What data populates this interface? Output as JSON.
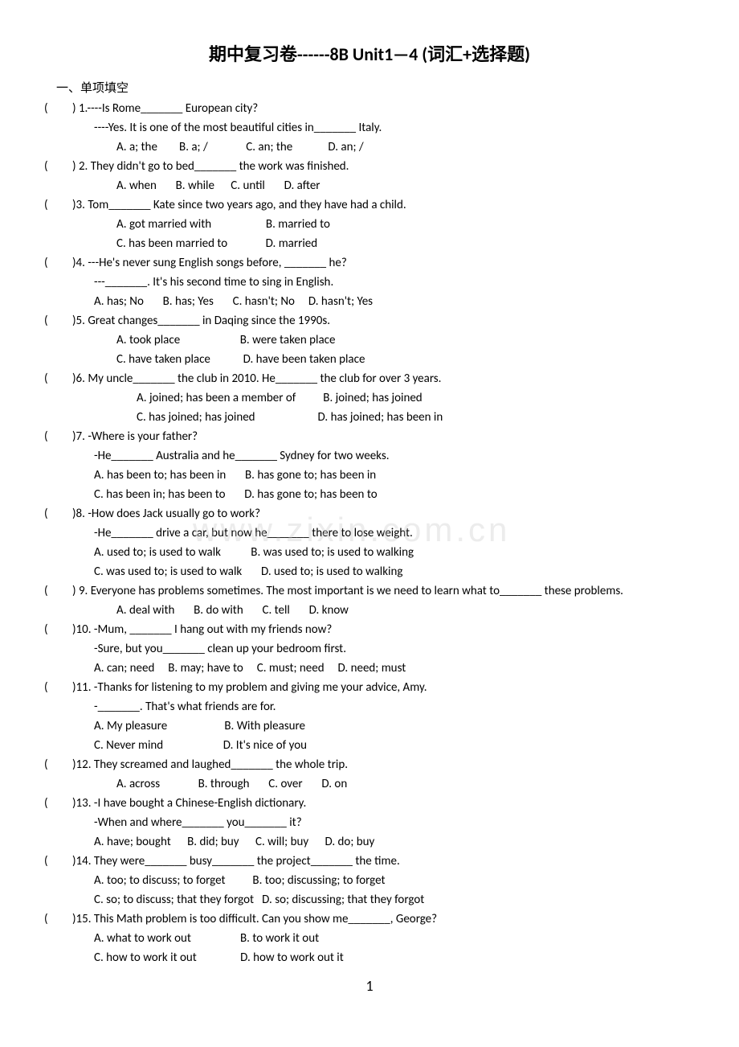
{
  "title": "期中复习卷------8B Unit1—4 (词汇+选择题)",
  "section_header": "一、单项填空",
  "watermark": "www.zixin.com.cn",
  "page_number": "1",
  "questions": [
    {
      "num": "1",
      "text": ") 1.----Is Rome_______ European city?",
      "lines": [
        "----Yes. It is one of the most beautiful cities in_______ Italy."
      ],
      "options": "A. a; the        B. a; /              C. an; the             D. an; /",
      "options_indent": true
    },
    {
      "num": "2",
      "text": ") 2. They didn't go to bed_______ the work was finished.",
      "lines": [],
      "options": "A. when       B. while      C. until       D. after",
      "options_indent": true
    },
    {
      "num": "3",
      "text": ")3. Tom_______ Kate since two years ago, and they have had a child.",
      "lines": [],
      "options_multi": [
        "A. got married with                    B. married to",
        "C. has been married to              D. married"
      ],
      "options_indent": true
    },
    {
      "num": "4",
      "text": ")4. ---He's never sung English songs before, _______ he?",
      "lines": [
        "---_______. It's his second time to sing in English."
      ],
      "options": "A. has; No       B. has; Yes       C. hasn't; No     D. hasn't; Yes"
    },
    {
      "num": "5",
      "text": ")5. Great changes_______ in Daqing since the 1990s.",
      "lines": [],
      "options_multi": [
        "A. took place                      B. were taken place",
        "C. have taken place            D. have been taken place"
      ],
      "options_indent": true
    },
    {
      "num": "6",
      "text": ")6. My uncle_______ the club in 2010. He_______ the club for over 3 years.",
      "lines": [],
      "options_multi": [
        "A. joined; has been a member of          B. joined; has joined",
        "C. has joined; has joined                       D. has joined; has been in"
      ],
      "options_indent": true,
      "extra_indent": true
    },
    {
      "num": "7",
      "text": ")7. -Where is your father?",
      "lines": [
        "-He_______ Australia and he_______ Sydney for two weeks."
      ],
      "options_multi": [
        "A. has been to; has been in       B. has gone to; has been in",
        "C. has been in; has been to       D. has gone to; has been to"
      ]
    },
    {
      "num": "8",
      "text": ")8. -How does Jack usually go to work?",
      "lines": [
        "-He_______ drive a car, but now he_______ there to lose weight."
      ],
      "options_multi": [
        "A. used to; is used to walk           B. was used to; is used to walking",
        "C. was used to; is used to walk       D. used to; is used to walking"
      ]
    },
    {
      "num": "9",
      "text": ") 9. Everyone has problems sometimes. The most important is we need to learn what to_______ these problems.",
      "lines": [],
      "options": "A. deal with       B. do with       C. tell       D. know",
      "options_indent": true
    },
    {
      "num": "10",
      "text": ")10. -Mum, _______ I hang out with my friends now?",
      "lines": [
        "-Sure, but you_______ clean up your bedroom first."
      ],
      "options": "A. can; need     B. may; have to     C. must; need     D. need; must"
    },
    {
      "num": "11",
      "text": ")11. -Thanks for listening to my problem and giving me your advice, Amy.",
      "lines": [
        "-_______. That's what friends are for."
      ],
      "options_multi": [
        "A. My pleasure                     B. With pleasure",
        "C. Never mind                      D. It's nice of you"
      ]
    },
    {
      "num": "12",
      "text": ")12. They screamed and laughed_______ the whole trip.",
      "lines": [],
      "options": "A. across              B. through       C. over       D. on",
      "options_indent": true
    },
    {
      "num": "13",
      "text": ")13. -I have bought a Chinese-English dictionary.",
      "lines": [
        "-When and where_______ you_______ it?"
      ],
      "options": "A. have; bought      B. did; buy      C. will; buy      D. do; buy"
    },
    {
      "num": "14",
      "text": ")14. They were_______ busy_______ the project_______ the time.",
      "lines": [],
      "options_multi": [
        "A. too; to discuss; to forget          B. too; discussing; to forget",
        "C. so; to discuss; that they forgot   D. so; discussing; that they forgot"
      ]
    },
    {
      "num": "15",
      "text": ")15. This Math problem is too difficult. Can you show me_______, George?",
      "lines": [],
      "options_multi": [
        "A. what to work out                  B. to work it out",
        "C. how to work it out                D. how to work out it"
      ]
    }
  ]
}
